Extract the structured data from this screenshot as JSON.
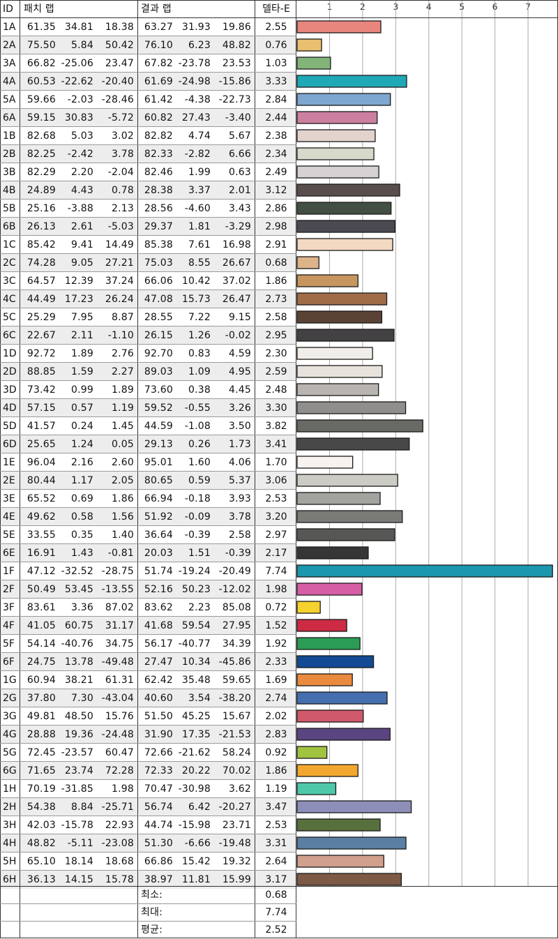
{
  "headers": {
    "id": "ID",
    "patch_lab": "패치 랩",
    "result_lab": "결과 랩",
    "delta_e": "델타-E"
  },
  "summary": {
    "min_label": "최소:",
    "min_value": "0.68",
    "max_label": "최대:",
    "max_value": "7.74",
    "avg_label": "평균:",
    "avg_value": "2.52"
  },
  "rows": [
    {
      "id": "1A",
      "p": [
        "61.35",
        "34.81",
        "18.38"
      ],
      "r": [
        "63.27",
        "31.93",
        "19.86"
      ],
      "de": "2.55",
      "color": "#e8867e"
    },
    {
      "id": "2A",
      "p": [
        "75.50",
        "5.84",
        "50.42"
      ],
      "r": [
        "76.10",
        "6.23",
        "48.82"
      ],
      "de": "0.76",
      "color": "#e8c070"
    },
    {
      "id": "3A",
      "p": [
        "66.82",
        "-25.06",
        "23.47"
      ],
      "r": [
        "67.82",
        "-23.78",
        "23.53"
      ],
      "de": "1.03",
      "color": "#82b47a"
    },
    {
      "id": "4A",
      "p": [
        "60.53",
        "-22.62",
        "-20.40"
      ],
      "r": [
        "61.69",
        "-24.98",
        "-15.86"
      ],
      "de": "3.33",
      "color": "#1fa8b6"
    },
    {
      "id": "5A",
      "p": [
        "59.66",
        "-2.03",
        "-28.46"
      ],
      "r": [
        "61.42",
        "-4.38",
        "-22.73"
      ],
      "de": "2.84",
      "color": "#7ea6cf"
    },
    {
      "id": "6A",
      "p": [
        "59.15",
        "30.83",
        "-5.72"
      ],
      "r": [
        "60.82",
        "27.43",
        "-3.40"
      ],
      "de": "2.44",
      "color": "#cc7fa0"
    },
    {
      "id": "1B",
      "p": [
        "82.68",
        "5.03",
        "3.02"
      ],
      "r": [
        "82.82",
        "4.74",
        "5.67"
      ],
      "de": "2.38",
      "color": "#e2d3cd"
    },
    {
      "id": "2B",
      "p": [
        "82.25",
        "-2.42",
        "3.78"
      ],
      "r": [
        "82.33",
        "-2.82",
        "6.66"
      ],
      "de": "2.34",
      "color": "#d7d9cb"
    },
    {
      "id": "3B",
      "p": [
        "82.29",
        "2.20",
        "-2.04"
      ],
      "r": [
        "82.46",
        "1.99",
        "0.63"
      ],
      "de": "2.49",
      "color": "#d6d2d3"
    },
    {
      "id": "4B",
      "p": [
        "24.89",
        "4.43",
        "0.78"
      ],
      "r": [
        "28.38",
        "3.37",
        "2.01"
      ],
      "de": "3.12",
      "color": "#5a4e4c"
    },
    {
      "id": "5B",
      "p": [
        "25.16",
        "-3.88",
        "2.13"
      ],
      "r": [
        "28.56",
        "-4.60",
        "3.43"
      ],
      "de": "2.86",
      "color": "#444f44"
    },
    {
      "id": "6B",
      "p": [
        "26.13",
        "2.61",
        "-5.03"
      ],
      "r": [
        "29.37",
        "1.81",
        "-3.29"
      ],
      "de": "2.98",
      "color": "#4b4a52"
    },
    {
      "id": "1C",
      "p": [
        "85.42",
        "9.41",
        "14.49"
      ],
      "r": [
        "85.38",
        "7.61",
        "16.98"
      ],
      "de": "2.91",
      "color": "#f3d8c2"
    },
    {
      "id": "2C",
      "p": [
        "74.28",
        "9.05",
        "27.21"
      ],
      "r": [
        "75.03",
        "8.55",
        "26.67"
      ],
      "de": "0.68",
      "color": "#ddb38a"
    },
    {
      "id": "3C",
      "p": [
        "64.57",
        "12.39",
        "37.24"
      ],
      "r": [
        "66.06",
        "10.42",
        "37.02"
      ],
      "de": "1.86",
      "color": "#c7965f"
    },
    {
      "id": "4C",
      "p": [
        "44.49",
        "17.23",
        "26.24"
      ],
      "r": [
        "47.08",
        "15.73",
        "26.47"
      ],
      "de": "2.73",
      "color": "#a06c48"
    },
    {
      "id": "5C",
      "p": [
        "25.29",
        "7.95",
        "8.87"
      ],
      "r": [
        "28.55",
        "7.22",
        "9.15"
      ],
      "de": "2.58",
      "color": "#5a4335"
    },
    {
      "id": "6C",
      "p": [
        "22.67",
        "2.11",
        "-1.10"
      ],
      "r": [
        "26.15",
        "1.26",
        "-0.02"
      ],
      "de": "2.95",
      "color": "#434143"
    },
    {
      "id": "1D",
      "p": [
        "92.72",
        "1.89",
        "2.76"
      ],
      "r": [
        "92.70",
        "0.83",
        "4.59"
      ],
      "de": "2.30",
      "color": "#f1ede8"
    },
    {
      "id": "2D",
      "p": [
        "88.85",
        "1.59",
        "2.27"
      ],
      "r": [
        "89.03",
        "1.09",
        "4.95"
      ],
      "de": "2.59",
      "color": "#e7e3dc"
    },
    {
      "id": "3D",
      "p": [
        "73.42",
        "0.99",
        "1.89"
      ],
      "r": [
        "73.60",
        "0.38",
        "4.45"
      ],
      "de": "2.48",
      "color": "#b8b5b0"
    },
    {
      "id": "4D",
      "p": [
        "57.15",
        "0.57",
        "1.19"
      ],
      "r": [
        "59.52",
        "-0.55",
        "3.26"
      ],
      "de": "3.30",
      "color": "#8f8e8c"
    },
    {
      "id": "5D",
      "p": [
        "41.57",
        "0.24",
        "1.45"
      ],
      "r": [
        "44.59",
        "-1.08",
        "3.50"
      ],
      "de": "3.82",
      "color": "#686a66"
    },
    {
      "id": "6D",
      "p": [
        "25.65",
        "1.24",
        "0.05"
      ],
      "r": [
        "29.13",
        "0.26",
        "1.73"
      ],
      "de": "3.41",
      "color": "#484848"
    },
    {
      "id": "1E",
      "p": [
        "96.04",
        "2.16",
        "2.60"
      ],
      "r": [
        "95.01",
        "1.60",
        "4.06"
      ],
      "de": "1.70",
      "color": "#f7f2ee"
    },
    {
      "id": "2E",
      "p": [
        "80.44",
        "1.17",
        "2.05"
      ],
      "r": [
        "80.65",
        "0.59",
        "5.37"
      ],
      "de": "3.06",
      "color": "#cdccc4"
    },
    {
      "id": "3E",
      "p": [
        "65.52",
        "0.69",
        "1.86"
      ],
      "r": [
        "66.94",
        "-0.18",
        "3.93"
      ],
      "de": "2.53",
      "color": "#a3a3a0"
    },
    {
      "id": "4E",
      "p": [
        "49.62",
        "0.58",
        "1.56"
      ],
      "r": [
        "51.92",
        "-0.09",
        "3.78"
      ],
      "de": "3.20",
      "color": "#7a7a77"
    },
    {
      "id": "5E",
      "p": [
        "33.55",
        "0.35",
        "1.40"
      ],
      "r": [
        "36.64",
        "-0.39",
        "2.58"
      ],
      "de": "2.97",
      "color": "#575756"
    },
    {
      "id": "6E",
      "p": [
        "16.91",
        "1.43",
        "-0.81"
      ],
      "r": [
        "20.03",
        "1.51",
        "-0.39"
      ],
      "de": "2.17",
      "color": "#353535"
    },
    {
      "id": "1F",
      "p": [
        "47.12",
        "-32.52",
        "-28.75"
      ],
      "r": [
        "51.74",
        "-19.24",
        "-20.49"
      ],
      "de": "7.74",
      "color": "#1d97ae"
    },
    {
      "id": "2F",
      "p": [
        "50.49",
        "53.45",
        "-13.55"
      ],
      "r": [
        "52.16",
        "50.23",
        "-12.02"
      ],
      "de": "1.98",
      "color": "#d65ea4"
    },
    {
      "id": "3F",
      "p": [
        "83.61",
        "3.36",
        "87.02"
      ],
      "r": [
        "83.62",
        "2.23",
        "85.08"
      ],
      "de": "0.72",
      "color": "#f5d22e"
    },
    {
      "id": "4F",
      "p": [
        "41.05",
        "60.75",
        "31.17"
      ],
      "r": [
        "41.68",
        "59.54",
        "27.95"
      ],
      "de": "1.52",
      "color": "#cc2b43"
    },
    {
      "id": "5F",
      "p": [
        "54.14",
        "-40.76",
        "34.75"
      ],
      "r": [
        "56.17",
        "-40.77",
        "34.39"
      ],
      "de": "1.92",
      "color": "#2b9c55"
    },
    {
      "id": "6F",
      "p": [
        "24.75",
        "13.78",
        "-49.48"
      ],
      "r": [
        "27.47",
        "10.34",
        "-45.86"
      ],
      "de": "2.33",
      "color": "#124a93"
    },
    {
      "id": "1G",
      "p": [
        "60.94",
        "38.21",
        "61.31"
      ],
      "r": [
        "62.42",
        "35.48",
        "59.65"
      ],
      "de": "1.69",
      "color": "#e98a3e"
    },
    {
      "id": "2G",
      "p": [
        "37.80",
        "7.30",
        "-43.04"
      ],
      "r": [
        "40.60",
        "3.54",
        "-38.20"
      ],
      "de": "2.74",
      "color": "#456fae"
    },
    {
      "id": "3G",
      "p": [
        "49.81",
        "48.50",
        "15.76"
      ],
      "r": [
        "51.50",
        "45.25",
        "15.67"
      ],
      "de": "2.02",
      "color": "#d0596b"
    },
    {
      "id": "4G",
      "p": [
        "28.88",
        "19.36",
        "-24.48"
      ],
      "r": [
        "31.90",
        "17.35",
        "-21.53"
      ],
      "de": "2.83",
      "color": "#5a4580"
    },
    {
      "id": "5G",
      "p": [
        "72.45",
        "-23.57",
        "60.47"
      ],
      "r": [
        "72.66",
        "-21.62",
        "58.24"
      ],
      "de": "0.92",
      "color": "#a2c340"
    },
    {
      "id": "6G",
      "p": [
        "71.65",
        "23.74",
        "72.28"
      ],
      "r": [
        "72.33",
        "20.22",
        "70.02"
      ],
      "de": "1.86",
      "color": "#f2a72f"
    },
    {
      "id": "1H",
      "p": [
        "70.19",
        "-31.85",
        "1.98"
      ],
      "r": [
        "70.47",
        "-30.98",
        "3.62"
      ],
      "de": "1.19",
      "color": "#4ec8a8"
    },
    {
      "id": "2H",
      "p": [
        "54.38",
        "8.84",
        "-25.71"
      ],
      "r": [
        "56.74",
        "6.42",
        "-20.27"
      ],
      "de": "3.47",
      "color": "#8e8fb8"
    },
    {
      "id": "3H",
      "p": [
        "42.03",
        "-15.78",
        "22.93"
      ],
      "r": [
        "44.74",
        "-15.98",
        "23.71"
      ],
      "de": "2.53",
      "color": "#58703e"
    },
    {
      "id": "4H",
      "p": [
        "48.82",
        "-5.11",
        "-23.08"
      ],
      "r": [
        "51.30",
        "-6.66",
        "-19.48"
      ],
      "de": "3.31",
      "color": "#5a7fa2"
    },
    {
      "id": "5H",
      "p": [
        "65.10",
        "18.14",
        "18.68"
      ],
      "r": [
        "66.86",
        "15.42",
        "19.32"
      ],
      "de": "2.64",
      "color": "#d0a08c"
    },
    {
      "id": "6H",
      "p": [
        "36.13",
        "14.15",
        "15.78"
      ],
      "r": [
        "38.97",
        "11.81",
        "15.99"
      ],
      "de": "3.17",
      "color": "#7d5a45"
    }
  ],
  "chart_data": {
    "type": "bar",
    "orientation": "horizontal",
    "categories": [
      "1A",
      "2A",
      "3A",
      "4A",
      "5A",
      "6A",
      "1B",
      "2B",
      "3B",
      "4B",
      "5B",
      "6B",
      "1C",
      "2C",
      "3C",
      "4C",
      "5C",
      "6C",
      "1D",
      "2D",
      "3D",
      "4D",
      "5D",
      "6D",
      "1E",
      "2E",
      "3E",
      "4E",
      "5E",
      "6E",
      "1F",
      "2F",
      "3F",
      "4F",
      "5F",
      "6F",
      "1G",
      "2G",
      "3G",
      "4G",
      "5G",
      "6G",
      "1H",
      "2H",
      "3H",
      "4H",
      "5H",
      "6H"
    ],
    "values": [
      2.55,
      0.76,
      1.03,
      3.33,
      2.84,
      2.44,
      2.38,
      2.34,
      2.49,
      3.12,
      2.86,
      2.98,
      2.91,
      0.68,
      1.86,
      2.73,
      2.58,
      2.95,
      2.3,
      2.59,
      2.48,
      3.3,
      3.82,
      3.41,
      1.7,
      3.06,
      2.53,
      3.2,
      2.97,
      2.17,
      7.74,
      1.98,
      0.72,
      1.52,
      1.92,
      2.33,
      1.69,
      2.74,
      2.02,
      2.83,
      0.92,
      1.86,
      1.19,
      3.47,
      2.53,
      3.31,
      2.64,
      3.17
    ],
    "x_ticks": [
      "1",
      "2",
      "3",
      "4",
      "5",
      "6",
      "7"
    ],
    "xlim": [
      0,
      7.8
    ],
    "grid": true
  }
}
